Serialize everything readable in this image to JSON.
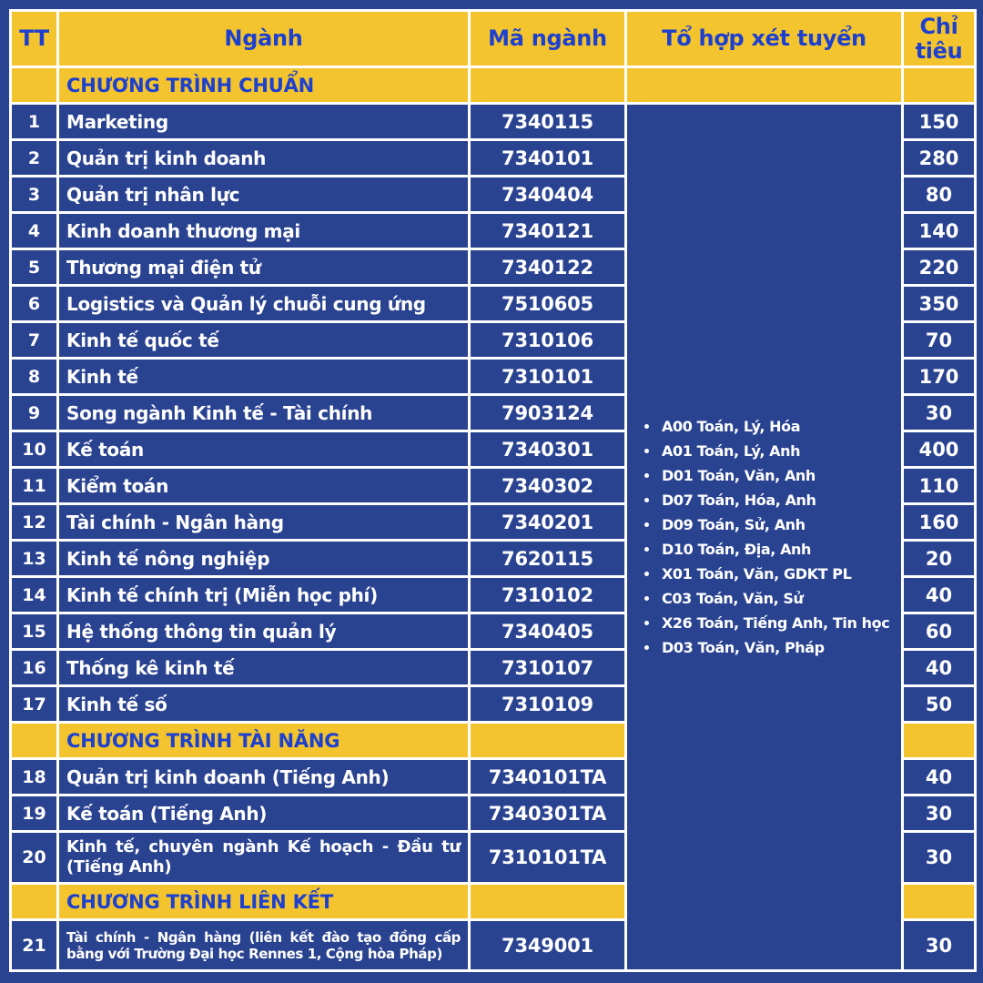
{
  "colors": {
    "background_blue": "#2a4391",
    "band_yellow": "#f3c42d",
    "heading_blue": "#1d40cf",
    "body_text_white": "#ffffff",
    "border_white": "#ffffff"
  },
  "table": {
    "headers": {
      "tt": "TT",
      "nganh": "Ngành",
      "ma_nganh": "Mã ngành",
      "to_hop": "Tổ hợp xét tuyển",
      "chi_tieu": "Chỉ tiêu"
    },
    "combinations": [
      "A00 Toán, Lý, Hóa",
      "A01 Toán, Lý, Anh",
      "D01 Toán, Văn, Anh",
      "D07 Toán, Hóa, Anh",
      "D09 Toán, Sử, Anh",
      "D10 Toán, Địa, Anh",
      "X01 Toán, Văn, GDKT PL",
      "C03 Toán, Văn, Sử",
      "X26 Toán, Tiếng Anh, Tin học",
      "D03 Toán, Văn, Pháp"
    ],
    "sections": [
      {
        "title": "CHƯƠNG TRÌNH CHUẨN",
        "rows": [
          {
            "tt": "1",
            "name": "Marketing",
            "code": "7340115",
            "quota": "150"
          },
          {
            "tt": "2",
            "name": "Quản trị kinh doanh",
            "code": "7340101",
            "quota": "280"
          },
          {
            "tt": "3",
            "name": "Quản trị nhân lực",
            "code": "7340404",
            "quota": "80"
          },
          {
            "tt": "4",
            "name": "Kinh doanh thương mại",
            "code": "7340121",
            "quota": "140"
          },
          {
            "tt": "5",
            "name": "Thương mại điện tử",
            "code": "7340122",
            "quota": "220"
          },
          {
            "tt": "6",
            "name": "Logistics và Quản lý chuỗi cung ứng",
            "code": "7510605",
            "quota": "350"
          },
          {
            "tt": "7",
            "name": "Kinh tế quốc tế",
            "code": "7310106",
            "quota": "70"
          },
          {
            "tt": "8",
            "name": "Kinh tế",
            "code": "7310101",
            "quota": "170"
          },
          {
            "tt": "9",
            "name": "Song ngành Kinh tế - Tài chính",
            "code": "7903124",
            "quota": "30"
          },
          {
            "tt": "10",
            "name": "Kế toán",
            "code": "7340301",
            "quota": "400"
          },
          {
            "tt": "11",
            "name": "Kiểm toán",
            "code": "7340302",
            "quota": "110"
          },
          {
            "tt": "12",
            "name": "Tài chính - Ngân hàng",
            "code": "7340201",
            "quota": "160"
          },
          {
            "tt": "13",
            "name": "Kinh tế nông nghiệp",
            "code": "7620115",
            "quota": "20"
          },
          {
            "tt": "14",
            "name": "Kinh tế chính trị (Miễn học phí)",
            "code": "7310102",
            "quota": "40"
          },
          {
            "tt": "15",
            "name": "Hệ thống thông tin quản lý",
            "code": "7340405",
            "quota": "60"
          },
          {
            "tt": "16",
            "name": "Thống kê kinh tế",
            "code": "7310107",
            "quota": "40"
          },
          {
            "tt": "17",
            "name": "Kinh tế số",
            "code": "7310109",
            "quota": "50"
          }
        ]
      },
      {
        "title": "CHƯƠNG TRÌNH TÀI NĂNG",
        "rows": [
          {
            "tt": "18",
            "name": "Quản trị kinh doanh (Tiếng Anh)",
            "code": "7340101TA",
            "quota": "40"
          },
          {
            "tt": "19",
            "name": "Kế toán (Tiếng Anh)",
            "code": "7340301TA",
            "quota": "30"
          },
          {
            "tt": "20",
            "name": "Kinh tế, chuyên ngành Kế hoạch  - Đầu tư (Tiếng Anh)",
            "code": "7310101TA",
            "quota": "30"
          }
        ]
      },
      {
        "title": "CHƯƠNG TRÌNH LIÊN KẾT",
        "rows": [
          {
            "tt": "21",
            "name": "Tài chính - Ngân hàng (liên kết đào tạo đồng cấp bằng với Trường Đại học Rennes 1, Cộng hòa Pháp)",
            "code": "7349001",
            "quota": "30"
          }
        ]
      }
    ]
  }
}
